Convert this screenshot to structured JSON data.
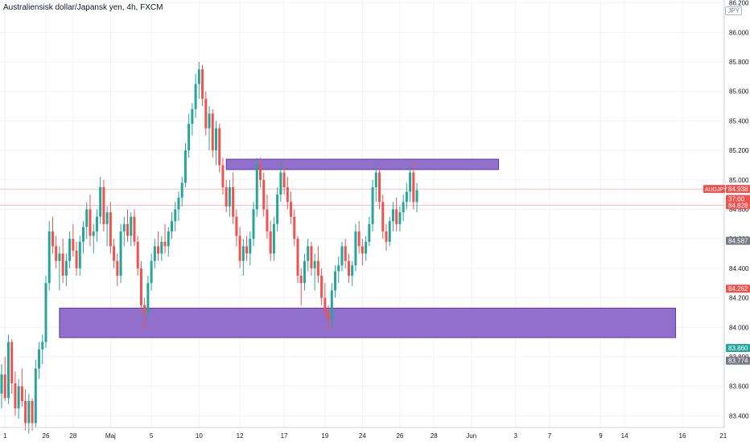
{
  "header": {
    "title": "Australiensisk dollar/Japansk yen, 4h, FXCM",
    "currency_badge": "JPY"
  },
  "chart_data": {
    "type": "candlestick",
    "title": "Australiensisk dollar/Japansk yen, 4h, FXCM",
    "symbol": "AUDJPY",
    "ylim": [
      83.32,
      86.22
    ],
    "y_ticks": [
      83.4,
      83.6,
      83.8,
      84.0,
      84.2,
      84.4,
      84.6,
      84.8,
      85.0,
      85.2,
      85.4,
      85.6,
      85.8,
      86.0,
      86.2
    ],
    "y_tick_labels": [
      "83.400",
      "83.600",
      "83.800",
      "84.000",
      "84.200",
      "84.400",
      "84.600",
      "84.800",
      "85.000",
      "85.200",
      "85.400",
      "85.600",
      "85.800",
      "86.000",
      "86.200"
    ],
    "x_ticks": [
      1,
      13,
      21,
      32,
      44,
      58,
      70,
      83,
      95,
      106,
      117,
      127,
      138,
      151,
      161,
      176,
      183,
      200,
      212
    ],
    "x_tick_labels": [
      "1",
      "26",
      "28",
      "Maj",
      "5",
      "10",
      "12",
      "17",
      "19",
      "24",
      "26",
      "28",
      "Jun",
      "3",
      "7",
      "9",
      "14",
      "16",
      "21"
    ],
    "colors": {
      "up": "#26a69a",
      "down": "#ef5350",
      "zone": "#7e57c2",
      "grid": "#f0f3fa"
    },
    "candles": [
      [
        83.55,
        83.75,
        83.45,
        83.68
      ],
      [
        83.68,
        83.8,
        83.5,
        83.52
      ],
      [
        83.52,
        83.95,
        83.48,
        83.9
      ],
      [
        83.9,
        83.92,
        83.55,
        83.62
      ],
      [
        83.62,
        83.7,
        83.4,
        83.45
      ],
      [
        83.45,
        83.65,
        83.38,
        83.6
      ],
      [
        83.6,
        83.72,
        83.46,
        83.5
      ],
      [
        83.5,
        83.58,
        83.3,
        83.35
      ],
      [
        83.35,
        83.55,
        83.28,
        83.5
      ],
      [
        83.5,
        83.52,
        83.3,
        83.35
      ],
      [
        83.35,
        83.78,
        83.32,
        83.72
      ],
      [
        83.72,
        83.9,
        83.65,
        83.85
      ],
      [
        83.85,
        83.95,
        83.75,
        83.9
      ],
      [
        83.9,
        84.35,
        83.86,
        84.3
      ],
      [
        84.3,
        84.72,
        84.25,
        84.65
      ],
      [
        84.65,
        84.75,
        84.5,
        84.55
      ],
      [
        84.55,
        84.62,
        84.4,
        84.45
      ],
      [
        84.45,
        84.55,
        84.25,
        84.5
      ],
      [
        84.5,
        84.6,
        84.3,
        84.35
      ],
      [
        84.35,
        84.5,
        84.28,
        84.45
      ],
      [
        84.45,
        84.65,
        84.4,
        84.6
      ],
      [
        84.6,
        84.7,
        84.48,
        84.52
      ],
      [
        84.52,
        84.58,
        84.35,
        84.4
      ],
      [
        84.4,
        84.62,
        84.35,
        84.58
      ],
      [
        84.58,
        84.72,
        84.5,
        84.68
      ],
      [
        84.68,
        84.85,
        84.6,
        84.8
      ],
      [
        84.8,
        84.9,
        84.55,
        84.62
      ],
      [
        84.62,
        84.7,
        84.5,
        84.65
      ],
      [
        84.65,
        84.8,
        84.58,
        84.75
      ],
      [
        84.75,
        85.02,
        84.7,
        84.95
      ],
      [
        84.95,
        85.0,
        84.65,
        84.7
      ],
      [
        84.7,
        84.82,
        84.55,
        84.78
      ],
      [
        84.78,
        84.85,
        84.5,
        84.55
      ],
      [
        84.55,
        84.6,
        84.4,
        84.45
      ],
      [
        84.45,
        84.5,
        84.28,
        84.35
      ],
      [
        84.35,
        84.7,
        84.3,
        84.65
      ],
      [
        84.65,
        84.75,
        84.55,
        84.7
      ],
      [
        84.7,
        84.8,
        84.58,
        84.62
      ],
      [
        84.62,
        84.78,
        84.55,
        84.75
      ],
      [
        84.75,
        84.8,
        84.55,
        84.58
      ],
      [
        84.58,
        84.62,
        84.35,
        84.4
      ],
      [
        84.4,
        84.45,
        84.12,
        84.15
      ],
      [
        84.15,
        84.2,
        83.98,
        84.1
      ],
      [
        84.1,
        84.35,
        84.05,
        84.3
      ],
      [
        84.3,
        84.5,
        84.25,
        84.45
      ],
      [
        84.45,
        84.6,
        84.4,
        84.55
      ],
      [
        84.55,
        84.65,
        84.45,
        84.5
      ],
      [
        84.5,
        84.62,
        84.45,
        84.58
      ],
      [
        84.58,
        84.7,
        84.5,
        84.55
      ],
      [
        84.55,
        84.68,
        84.48,
        84.65
      ],
      [
        84.65,
        84.78,
        84.6,
        84.72
      ],
      [
        84.72,
        84.85,
        84.65,
        84.8
      ],
      [
        84.8,
        84.92,
        84.72,
        84.88
      ],
      [
        84.88,
        85.02,
        84.82,
        84.98
      ],
      [
        84.98,
        85.25,
        84.95,
        85.2
      ],
      [
        85.2,
        85.45,
        85.15,
        85.38
      ],
      [
        85.38,
        85.52,
        85.3,
        85.48
      ],
      [
        85.48,
        85.72,
        85.42,
        85.65
      ],
      [
        85.65,
        85.8,
        85.55,
        85.75
      ],
      [
        85.75,
        85.78,
        85.5,
        85.55
      ],
      [
        85.55,
        85.6,
        85.3,
        85.35
      ],
      [
        85.35,
        85.5,
        85.2,
        85.45
      ],
      [
        85.45,
        85.48,
        85.15,
        85.2
      ],
      [
        85.2,
        85.4,
        85.1,
        85.35
      ],
      [
        85.35,
        85.38,
        85.05,
        85.1
      ],
      [
        85.1,
        85.15,
        84.9,
        84.95
      ],
      [
        84.95,
        85.0,
        84.78,
        84.82
      ],
      [
        84.82,
        85.0,
        84.75,
        84.95
      ],
      [
        84.95,
        85.05,
        84.7,
        84.75
      ],
      [
        84.75,
        84.8,
        84.55,
        84.62
      ],
      [
        84.62,
        84.68,
        84.4,
        84.45
      ],
      [
        84.45,
        84.6,
        84.35,
        84.55
      ],
      [
        84.55,
        84.62,
        84.45,
        84.5
      ],
      [
        84.5,
        84.65,
        84.42,
        84.6
      ],
      [
        84.6,
        84.85,
        84.55,
        84.8
      ],
      [
        84.8,
        85.15,
        84.75,
        85.1
      ],
      [
        85.1,
        85.15,
        84.95,
        85.0
      ],
      [
        85.0,
        85.05,
        84.75,
        84.8
      ],
      [
        84.8,
        84.9,
        84.6,
        84.65
      ],
      [
        84.65,
        84.72,
        84.45,
        84.5
      ],
      [
        84.5,
        84.75,
        84.45,
        84.7
      ],
      [
        84.7,
        84.95,
        84.65,
        84.9
      ],
      [
        84.9,
        85.12,
        84.85,
        85.05
      ],
      [
        85.05,
        85.1,
        84.9,
        84.95
      ],
      [
        84.95,
        85.02,
        84.8,
        84.85
      ],
      [
        84.85,
        84.92,
        84.7,
        84.75
      ],
      [
        84.75,
        84.8,
        84.55,
        84.6
      ],
      [
        84.6,
        84.62,
        84.3,
        84.35
      ],
      [
        84.35,
        84.4,
        84.15,
        84.3
      ],
      [
        84.3,
        84.5,
        84.25,
        84.45
      ],
      [
        84.45,
        84.6,
        84.38,
        84.55
      ],
      [
        84.55,
        84.58,
        84.35,
        84.4
      ],
      [
        84.4,
        84.5,
        84.25,
        84.45
      ],
      [
        84.45,
        84.55,
        84.3,
        84.35
      ],
      [
        84.35,
        84.4,
        84.15,
        84.2
      ],
      [
        84.2,
        84.3,
        84.08,
        84.1
      ],
      [
        84.1,
        84.15,
        83.98,
        84.05
      ],
      [
        84.05,
        84.3,
        84.0,
        84.25
      ],
      [
        84.25,
        84.42,
        84.2,
        84.38
      ],
      [
        84.38,
        84.48,
        84.3,
        84.42
      ],
      [
        84.42,
        84.58,
        84.38,
        84.55
      ],
      [
        84.55,
        84.6,
        84.4,
        84.45
      ],
      [
        84.45,
        84.5,
        84.3,
        84.35
      ],
      [
        84.35,
        84.45,
        84.28,
        84.42
      ],
      [
        84.42,
        84.7,
        84.38,
        84.65
      ],
      [
        84.65,
        84.72,
        84.5,
        84.55
      ],
      [
        84.55,
        84.6,
        84.42,
        84.5
      ],
      [
        84.5,
        84.62,
        84.45,
        84.58
      ],
      [
        84.58,
        84.75,
        84.55,
        84.7
      ],
      [
        84.7,
        85.0,
        84.65,
        84.95
      ],
      [
        84.95,
        85.1,
        84.85,
        85.05
      ],
      [
        85.05,
        85.08,
        84.8,
        84.85
      ],
      [
        84.85,
        84.9,
        84.6,
        84.65
      ],
      [
        84.65,
        84.7,
        84.52,
        84.58
      ],
      [
        84.58,
        84.75,
        84.55,
        84.72
      ],
      [
        84.72,
        84.85,
        84.65,
        84.8
      ],
      [
        84.8,
        84.88,
        84.65,
        84.7
      ],
      [
        84.7,
        84.82,
        84.65,
        84.78
      ],
      [
        84.78,
        84.9,
        84.72,
        84.85
      ],
      [
        84.85,
        84.98,
        84.8,
        84.92
      ],
      [
        84.92,
        85.1,
        84.85,
        85.05
      ],
      [
        85.05,
        85.12,
        84.8,
        84.85
      ],
      [
        84.85,
        84.98,
        84.78,
        84.93
      ]
    ],
    "zones": [
      {
        "top": 85.14,
        "bottom": 85.12,
        "top_real": 85.14,
        "from_index": 66,
        "to_index": 146
      },
      {
        "top": 84.13,
        "bottom": 83.93,
        "from_index": 17,
        "to_index": 198
      }
    ],
    "price_labels": [
      {
        "value": 84.938,
        "text": "84.938",
        "bg": "#ef5350"
      },
      {
        "value": 84.87,
        "text": "37:00",
        "bg": "#ef5350"
      },
      {
        "value": 84.828,
        "text": "84.828",
        "bg": "#ef5350"
      },
      {
        "value": 84.587,
        "text": "84.587",
        "bg": "#787b86"
      },
      {
        "value": 84.262,
        "text": "84.262",
        "bg": "#ef5350"
      },
      {
        "value": 83.86,
        "text": "83.860",
        "bg": "#26a69a"
      },
      {
        "value": 83.774,
        "text": "83.774",
        "bg": "#787b86"
      }
    ],
    "symbol_label": {
      "value": 84.938,
      "text": "AUDJPY"
    },
    "hlines": [
      84.938,
      84.828
    ]
  }
}
